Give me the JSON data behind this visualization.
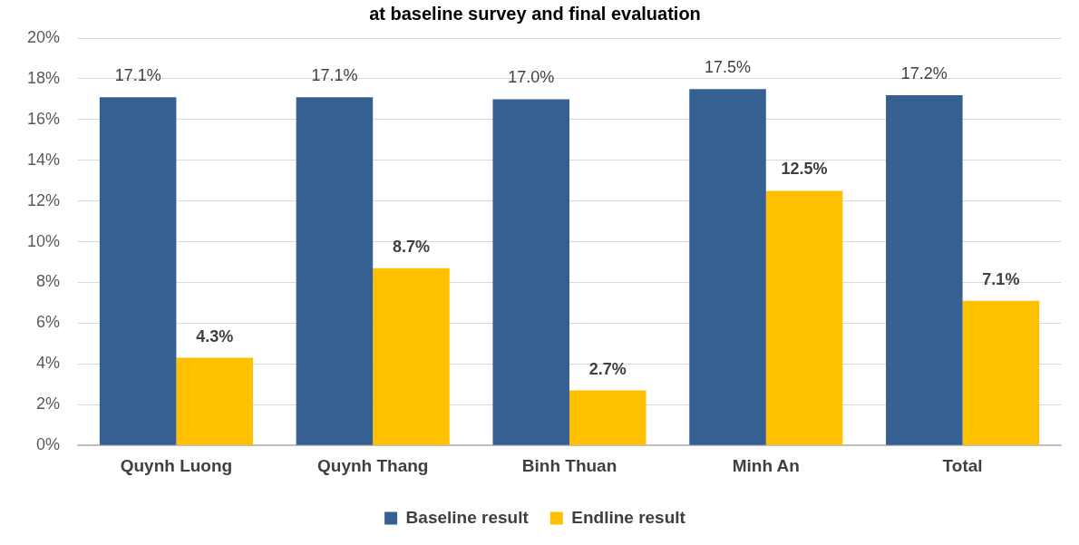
{
  "chart_data": {
    "type": "bar",
    "title": "at baseline survey and final evaluation",
    "categories": [
      "Quynh Luong",
      "Quynh Thang",
      "Binh Thuan",
      "Minh An",
      "Total"
    ],
    "series": [
      {
        "name": "Baseline result",
        "color": "#376092",
        "values": [
          17.1,
          17.1,
          17.0,
          17.5,
          17.2
        ],
        "value_labels": [
          "17.1%",
          "17.1%",
          "17.0%",
          "17.5%",
          "17.2%"
        ]
      },
      {
        "name": "Endline result",
        "color": "#ffc000",
        "values": [
          4.3,
          8.7,
          2.7,
          12.5,
          7.1
        ],
        "value_labels": [
          "4.3%",
          "8.7%",
          "2.7%",
          "12.5%",
          "7.1%"
        ]
      }
    ],
    "ylim": [
      0,
      20
    ],
    "yticks": [
      {
        "value": 0,
        "label": "0%"
      },
      {
        "value": 2,
        "label": "2%"
      },
      {
        "value": 4,
        "label": "4%"
      },
      {
        "value": 6,
        "label": "6%"
      },
      {
        "value": 8,
        "label": "8%"
      },
      {
        "value": 10,
        "label": "10%"
      },
      {
        "value": 12,
        "label": "12%"
      },
      {
        "value": 14,
        "label": "14%"
      },
      {
        "value": 16,
        "label": "16%"
      },
      {
        "value": 18,
        "label": "18%"
      },
      {
        "value": 20,
        "label": "20%"
      }
    ],
    "grid": "y",
    "legend": "bottom"
  }
}
